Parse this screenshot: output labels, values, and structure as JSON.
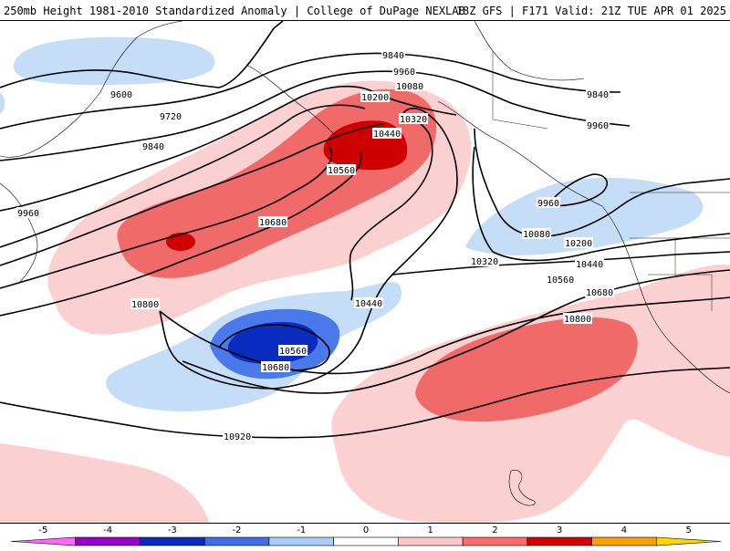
{
  "header": {
    "left": "250mb Height 1981-2010 Standardized Anomaly | College of DuPage NEXLAB",
    "right": "18Z GFS | F171 Valid: 21Z TUE APR 01 2025"
  },
  "contour_labels": [
    "9600",
    "9720",
    "9840",
    "9960",
    "10080",
    "10200",
    "10320",
    "10440",
    "10560",
    "10680",
    "10800",
    "10920"
  ],
  "colorbar": {
    "ticks": [
      "-5",
      "-4",
      "-3",
      "-2",
      "-1",
      "0",
      "1",
      "2",
      "3",
      "4",
      "5"
    ],
    "colors": [
      "#ff66ff",
      "#9a00c8",
      "#0a2bbf",
      "#3f6fe8",
      "#a9cdf6",
      "#ffffff",
      "#ffc8c8",
      "#ff6a6a",
      "#d40000",
      "#ffa000",
      "#ffd700"
    ]
  },
  "anomaly_colors": {
    "light_blue": "#c6ddf8",
    "mid_blue": "#4a79ea",
    "dark_blue": "#0a2bbf",
    "light_red": "#fbd0d0",
    "mid_red": "#f06a6a",
    "dark_red": "#cf0000"
  }
}
